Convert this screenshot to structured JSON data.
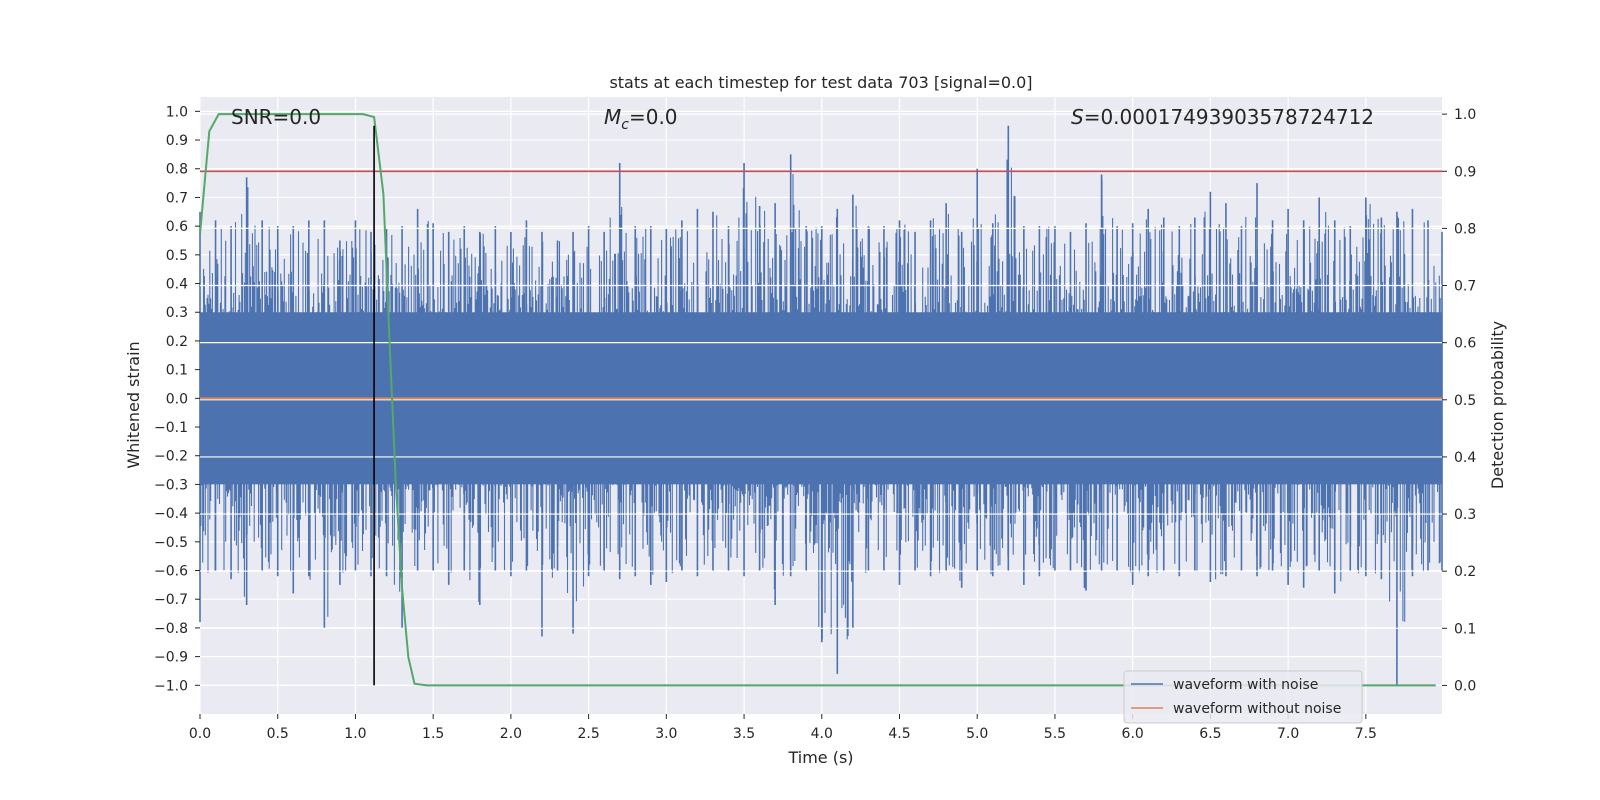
{
  "chart_data": {
    "type": "line",
    "title": "stats at each timestep for test data 703 [signal=0.0]",
    "xlabel": "Time (s)",
    "ylabel_left": "Whitened strain",
    "ylabel_right": "Detection probability",
    "xlim": [
      0.0,
      7.99
    ],
    "ylim_left": [
      -1.1,
      1.05
    ],
    "ylim_right": [
      -0.05,
      1.03
    ],
    "x_ticks": [
      0.0,
      0.5,
      1.0,
      1.5,
      2.0,
      2.5,
      3.0,
      3.5,
      4.0,
      4.5,
      5.0,
      5.5,
      6.0,
      6.5,
      7.0,
      7.5
    ],
    "x_tick_labels": [
      "0.0",
      "0.5",
      "1.0",
      "1.5",
      "2.0",
      "2.5",
      "3.0",
      "3.5",
      "4.0",
      "4.5",
      "5.0",
      "5.5",
      "6.0",
      "6.5",
      "7.0",
      "7.5"
    ],
    "y_left_ticks": [
      1.0,
      0.9,
      0.8,
      0.7,
      0.6,
      0.5,
      0.4,
      0.3,
      0.2,
      0.1,
      0.0,
      -0.1,
      -0.2,
      -0.3,
      -0.4,
      -0.5,
      -0.6,
      -0.7,
      -0.8,
      -0.9,
      -1.0
    ],
    "y_left_tick_labels": [
      "1.0",
      "0.9",
      "0.8",
      "0.7",
      "0.6",
      "0.5",
      "0.4",
      "0.3",
      "0.2",
      "0.1",
      "0.0",
      "−0.1",
      "−0.2",
      "−0.3",
      "−0.4",
      "−0.5",
      "−0.6",
      "−0.7",
      "−0.8",
      "−0.9",
      "−1.0"
    ],
    "y_right_ticks": [
      1.0,
      0.9,
      0.8,
      0.7,
      0.6,
      0.5,
      0.4,
      0.3,
      0.2,
      0.1,
      0.0
    ],
    "y_right_tick_labels": [
      "1.0",
      "0.9",
      "0.8",
      "0.7",
      "0.6",
      "0.5",
      "0.4",
      "0.3",
      "0.2",
      "0.1",
      "0.0"
    ],
    "grid": true,
    "legend_placement": "lower-right",
    "series": [
      {
        "name": "waveform with noise",
        "axis": "left",
        "color": "#4c72b0",
        "envelope_x": [
          0.0,
          0.1,
          0.2,
          0.3,
          0.4,
          0.5,
          0.6,
          0.7,
          0.8,
          0.9,
          1.0,
          1.1,
          1.2,
          1.3,
          1.4,
          1.5,
          1.6,
          1.7,
          1.8,
          1.9,
          2.0,
          2.1,
          2.2,
          2.3,
          2.4,
          2.5,
          2.6,
          2.7,
          2.8,
          2.9,
          3.0,
          3.1,
          3.2,
          3.3,
          3.4,
          3.5,
          3.6,
          3.7,
          3.8,
          3.9,
          4.0,
          4.1,
          4.2,
          4.3,
          4.4,
          4.5,
          4.6,
          4.7,
          4.8,
          4.9,
          5.0,
          5.1,
          5.2,
          5.3,
          5.4,
          5.5,
          5.6,
          5.7,
          5.8,
          5.9,
          6.0,
          6.1,
          6.2,
          6.3,
          6.4,
          6.5,
          6.6,
          6.7,
          6.8,
          6.9,
          7.0,
          7.1,
          7.2,
          7.3,
          7.4,
          7.5,
          7.6,
          7.7,
          7.8,
          7.9,
          7.99
        ],
        "envelope_max": [
          0.65,
          0.62,
          0.6,
          0.77,
          0.62,
          0.6,
          0.6,
          0.62,
          0.62,
          0.55,
          0.62,
          0.58,
          0.59,
          0.6,
          0.66,
          0.61,
          0.58,
          0.6,
          0.58,
          0.6,
          0.58,
          0.62,
          0.58,
          0.55,
          0.58,
          0.6,
          0.58,
          0.82,
          0.6,
          0.6,
          0.59,
          0.62,
          0.66,
          0.65,
          0.6,
          0.82,
          0.67,
          0.68,
          0.85,
          0.6,
          0.6,
          0.66,
          0.71,
          0.6,
          0.6,
          0.62,
          0.58,
          0.62,
          0.68,
          0.58,
          0.8,
          0.61,
          0.95,
          0.6,
          0.6,
          0.6,
          0.58,
          0.61,
          0.78,
          0.6,
          0.61,
          0.66,
          0.63,
          0.6,
          0.63,
          0.72,
          0.68,
          0.6,
          0.75,
          0.62,
          0.66,
          0.62,
          0.7,
          0.62,
          0.6,
          0.7,
          0.63,
          0.65,
          0.66,
          0.62,
          0.58
        ],
        "envelope_min": [
          -0.78,
          -0.6,
          -0.63,
          -0.72,
          -0.6,
          -0.62,
          -0.68,
          -0.62,
          -0.8,
          -0.65,
          -0.6,
          -0.62,
          -0.62,
          -0.8,
          -0.6,
          -0.6,
          -0.65,
          -0.6,
          -0.72,
          -0.6,
          -0.62,
          -0.6,
          -0.83,
          -0.6,
          -0.82,
          -0.62,
          -0.6,
          -0.63,
          -0.62,
          -0.65,
          -0.64,
          -0.6,
          -0.62,
          -0.6,
          -0.6,
          -0.62,
          -0.6,
          -0.72,
          -0.62,
          -0.6,
          -0.85,
          -0.96,
          -0.8,
          -0.6,
          -0.6,
          -0.65,
          -0.6,
          -0.62,
          -0.6,
          -0.66,
          -0.6,
          -0.62,
          -0.6,
          -0.65,
          -0.62,
          -0.6,
          -0.6,
          -0.67,
          -0.6,
          -0.6,
          -0.65,
          -0.62,
          -0.6,
          -0.62,
          -0.6,
          -0.64,
          -0.62,
          -0.6,
          -0.62,
          -0.6,
          -0.65,
          -0.66,
          -0.6,
          -0.68,
          -0.6,
          -0.62,
          -0.63,
          -1.0,
          -0.62,
          -0.6,
          -0.6
        ]
      },
      {
        "name": "waveform without noise",
        "axis": "left",
        "color": "#dd8452",
        "x": [
          0.0,
          7.99
        ],
        "y": [
          0.0,
          0.0
        ]
      },
      {
        "axis": "right",
        "color": "#55a868",
        "x": [
          0.0,
          0.06,
          0.12,
          0.2,
          0.4,
          0.6,
          0.8,
          1.0,
          1.05,
          1.12,
          1.18,
          1.22,
          1.26,
          1.3,
          1.34,
          1.38,
          1.46,
          1.6,
          2.0,
          3.0,
          4.0,
          5.0,
          6.0,
          7.0,
          7.95
        ],
        "y": [
          0.79,
          0.97,
          1.0,
          1.0,
          1.0,
          1.0,
          1.0,
          1.0,
          1.0,
          0.995,
          0.86,
          0.6,
          0.35,
          0.17,
          0.05,
          0.003,
          0.0,
          0.0,
          0.0,
          0.0,
          0.0,
          0.0,
          0.0,
          0.0,
          0.0
        ]
      },
      {
        "axis": "right",
        "color": "#c44e52",
        "type": "hline",
        "y": 0.9
      },
      {
        "axis": "left",
        "color": "#000000",
        "type": "vline",
        "x": 1.12,
        "ymin": -1.0,
        "ymax": 0.95
      }
    ],
    "annotations": {
      "snr_label": "SNR=0.0",
      "mc_symbol": "M",
      "mc_subscript": "c",
      "mc_value": "=0.0",
      "s_symbol": "S",
      "s_value": "=0.00017493903578724712"
    },
    "legend": [
      {
        "label": "waveform with noise",
        "color": "#4c72b0"
      },
      {
        "label": "waveform without noise",
        "color": "#dd8452"
      }
    ],
    "colors": {
      "plot_background": "#eaeaf2",
      "grid": "#ffffff",
      "text": "#262626"
    }
  }
}
